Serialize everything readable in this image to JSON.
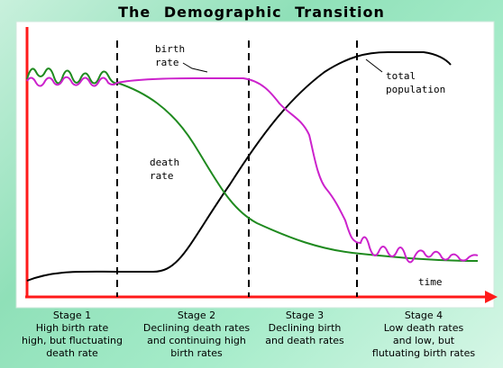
{
  "title": "The Demographic Transition",
  "labels": {
    "birth_rate_1": "birth",
    "birth_rate_2": "rate",
    "death_rate_1": "death",
    "death_rate_2": "rate",
    "total_1": "total",
    "total_2": "population",
    "time": "time"
  },
  "stages": [
    {
      "title": "Stage 1",
      "line1": "High birth rate",
      "line2": "high, but fluctuating",
      "line3": "death rate"
    },
    {
      "title": "Stage 2",
      "line1": "Declining death rates",
      "line2": "and continuing high",
      "line3": "birth rates"
    },
    {
      "title": "Stage 3",
      "line1": "Declining birth",
      "line2": "and death rates",
      "line3": ""
    },
    {
      "title": "Stage 4",
      "line1": "Low death rates",
      "line2": "and low, but",
      "line3": "flutuating birth rates"
    }
  ],
  "colors": {
    "birth_rate": "#cc22cc",
    "death_rate": "#1f8a1f",
    "total_population": "#000000",
    "axes": "#ff1a1a",
    "panel": "#ffffff"
  }
}
